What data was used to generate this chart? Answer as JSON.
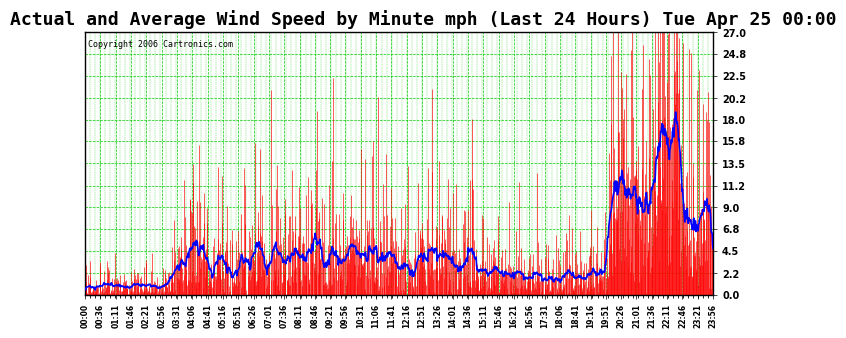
{
  "title": "Actual and Average Wind Speed by Minute mph (Last 24 Hours) Tue Apr 25 00:00",
  "copyright_text": "Copyright 2006 Cartronics.com",
  "y_ticks": [
    0.0,
    2.2,
    4.5,
    6.8,
    9.0,
    11.2,
    13.5,
    15.8,
    18.0,
    20.2,
    22.5,
    24.8,
    27.0
  ],
  "ylim": [
    0.0,
    27.0
  ],
  "x_labels": [
    "00:00",
    "00:36",
    "01:11",
    "01:46",
    "02:21",
    "02:56",
    "03:31",
    "04:06",
    "04:41",
    "05:16",
    "05:51",
    "06:26",
    "07:01",
    "07:36",
    "08:11",
    "08:46",
    "09:21",
    "09:56",
    "10:31",
    "11:06",
    "11:41",
    "12:16",
    "12:51",
    "13:26",
    "14:01",
    "14:36",
    "15:11",
    "15:46",
    "16:21",
    "16:56",
    "17:31",
    "18:06",
    "18:41",
    "19:16",
    "19:51",
    "20:26",
    "21:01",
    "21:36",
    "22:11",
    "22:46",
    "23:21",
    "23:56"
  ],
  "background_color": "#ffffff",
  "plot_bg_color": "#ffffff",
  "grid_color_major": "#00cc00",
  "grid_color_minor": "#00cc00",
  "actual_color": "#ff0000",
  "average_color": "#0000ff",
  "title_fontsize": 13,
  "border_color": "#000000",
  "num_minutes": 1440
}
